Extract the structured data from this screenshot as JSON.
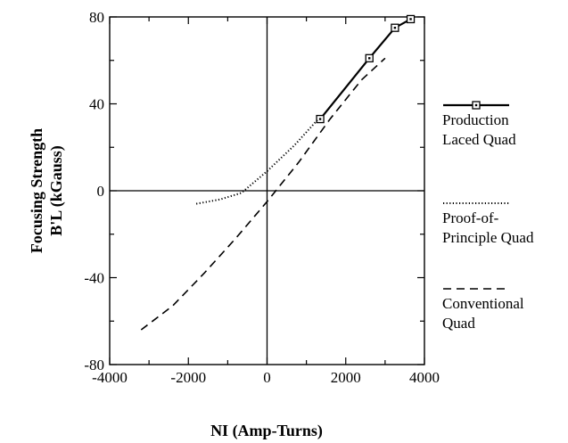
{
  "chart_data": {
    "type": "line",
    "xlabel": "NI  (Amp-Turns)",
    "ylabel_line1": "Focusing  Strength",
    "ylabel_line2": "B'L  (kGauss)",
    "xlim": [
      -4000,
      4000
    ],
    "ylim": [
      -80,
      80
    ],
    "xticks": [
      -4000,
      -2000,
      0,
      2000,
      4000
    ],
    "xtick_labels": [
      "-4000",
      "-2000",
      "0",
      "2000",
      "4000"
    ],
    "yticks": [
      -80,
      -40,
      0,
      40,
      80
    ],
    "ytick_labels": [
      "-80",
      "-40",
      "0",
      "40",
      "80"
    ],
    "zero_lines": true,
    "legend_position": "right",
    "series": [
      {
        "name_lines": [
          "Production",
          "Laced Quad"
        ],
        "style": "solid",
        "marker": "square",
        "color": "#000000",
        "x": [
          1350,
          2600,
          3250,
          3650
        ],
        "y": [
          33,
          61,
          75,
          79
        ]
      },
      {
        "name_lines": [
          "Proof-of-",
          "Principle Quad"
        ],
        "style": "dotted",
        "marker": "none",
        "color": "#000000",
        "x": [
          -1800,
          -1200,
          -650,
          0,
          700,
          1300
        ],
        "y": [
          -6,
          -4,
          -1,
          9,
          21,
          33
        ]
      },
      {
        "name_lines": [
          "Conventional",
          "Quad"
        ],
        "style": "dashed",
        "marker": "none",
        "color": "#000000",
        "x": [
          -3200,
          -2400,
          -1600,
          -800,
          0,
          800,
          1600,
          2400,
          3000
        ],
        "y": [
          -64,
          -53,
          -38,
          -22,
          -5,
          13,
          33,
          51,
          61
        ]
      }
    ]
  }
}
